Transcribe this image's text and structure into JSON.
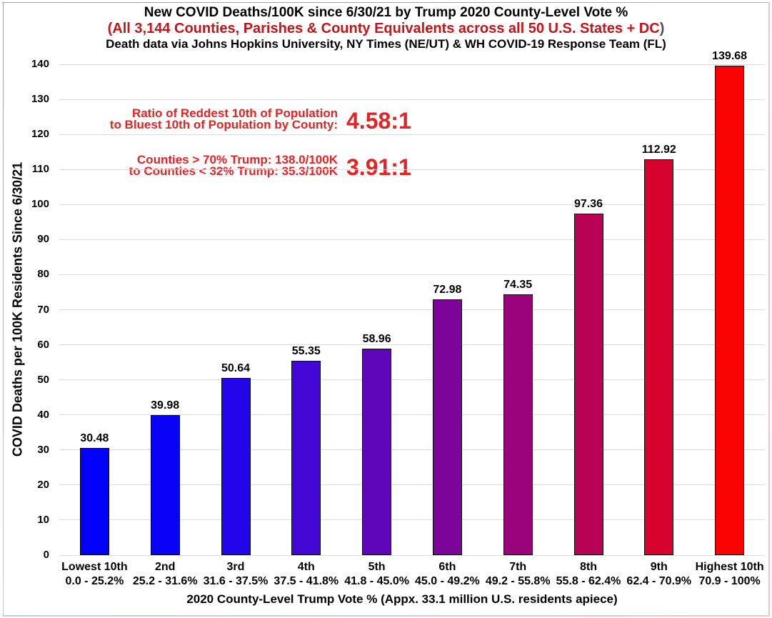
{
  "header": {
    "title": "New COVID Deaths/100K since 6/30/21 by Trump 2020 County-Level Vote %",
    "subtitle": "(All 3,144 Counties, Parishes & County Equivalents across all 50 U.S. States + DC",
    "subtitle_close": ")",
    "source": "Death data via Johns Hopkins University, NY Times (NE/UT) & WH COVID-19 Response Team (FL)"
  },
  "annotations": [
    {
      "line1": "Ratio of Reddest 10th of Population",
      "line2": "to Bluest 10th of Population by County:",
      "ratio": "4.58:1"
    },
    {
      "line1": "Counties > 70% Trump: 138.0/100K",
      "line2": "to Counties < 32% Trump: 35.3/100K",
      "ratio": "3.91:1"
    }
  ],
  "chart_data": {
    "type": "bar",
    "title": "New COVID Deaths/100K since 6/30/21 by Trump 2020 County-Level Vote %",
    "categories": [
      "Lowest 10th",
      "2nd",
      "3rd",
      "4th",
      "5th",
      "6th",
      "7th",
      "8th",
      "9th",
      "Highest 10th"
    ],
    "category_ranges": [
      "0.0 - 25.2%",
      "25.2 - 31.6%",
      "31.6 - 37.5%",
      "37.5 - 41.8%",
      "41.8 - 45.0%",
      "45.0 - 49.2%",
      "49.2 - 55.8%",
      "55.8 - 62.4%",
      "62.4 - 70.9%",
      "70.9 - 100%"
    ],
    "values": [
      30.48,
      39.98,
      50.64,
      55.35,
      58.96,
      72.98,
      74.35,
      97.36,
      112.92,
      139.68
    ],
    "bar_colors": [
      "#0201FE",
      "#0A02F6",
      "#2305E9",
      "#4307D6",
      "#6006BA",
      "#7D049B",
      "#9A037B",
      "#B80256",
      "#D6032F",
      "#FA0303"
    ],
    "xlabel": "2020 County-Level Trump Vote % (Appx. 33.1 million U.S. residents apiece)",
    "ylabel": "COVID Deaths per 100K Residents Since 6/30/21",
    "ylim": [
      0,
      140
    ],
    "ytick_step": 10,
    "grid": true,
    "legend": "none"
  },
  "colors": {
    "subtitle_red": "#C4151B",
    "annotation_red": "#E42325",
    "grid_line": "#DCDCDC",
    "bar_border": "#000000",
    "text_black": "#000000"
  }
}
